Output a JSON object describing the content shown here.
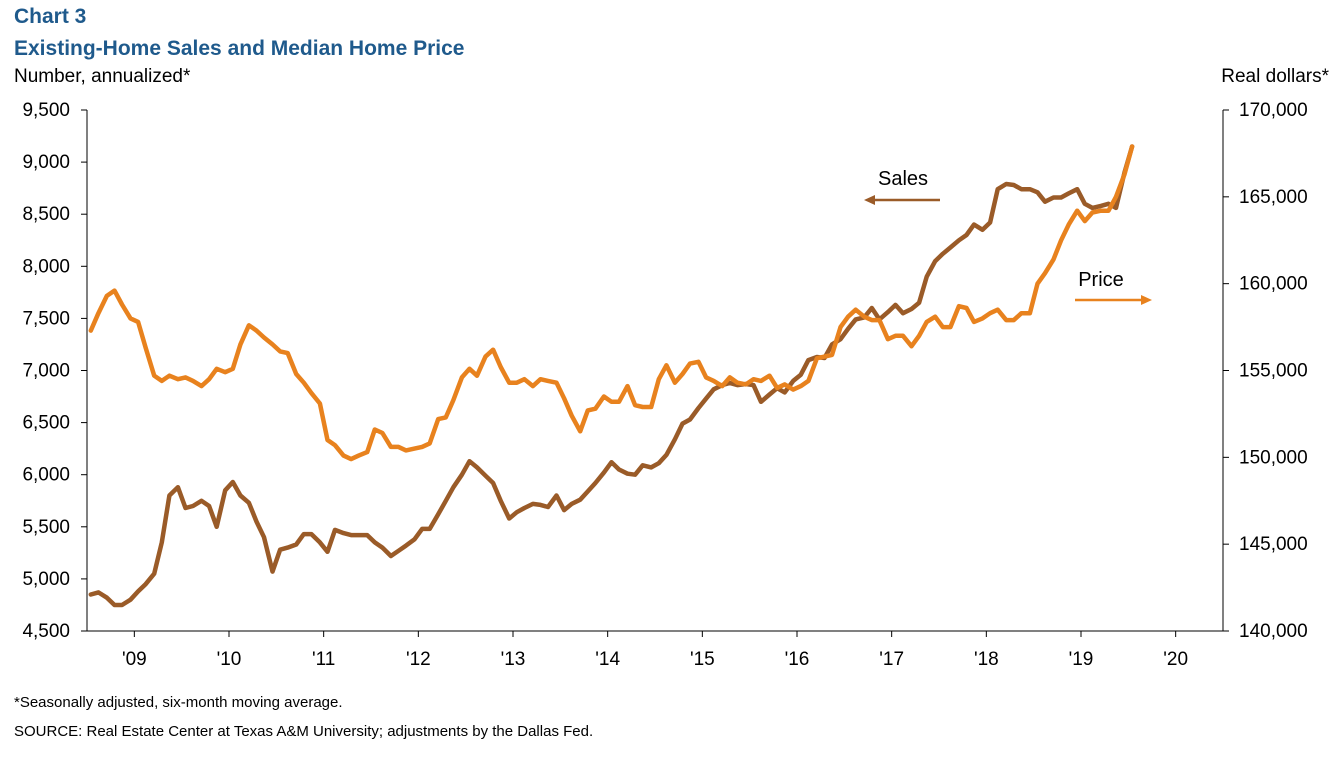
{
  "header": {
    "chart_number": "Chart 3",
    "title": "Existing-Home Sales and Median Home Price",
    "left_axis_label": "Number, annualized*",
    "right_axis_label": "Real dollars*"
  },
  "footer": {
    "note": "*Seasonally adjusted, six-month moving average.",
    "source": "SOURCE: Real Estate Center at Texas A&M University; adjustments by the Dallas Fed."
  },
  "colors": {
    "sales": "#9a5b28",
    "price": "#e8821e",
    "axis": "#000000"
  },
  "chart_data": {
    "type": "line",
    "title": "Existing-Home Sales and Median Home Price",
    "ylabel": "Number, annualized*",
    "y2label": "Real dollars*",
    "xlim": [
      2008.5,
      2020.5
    ],
    "ylim": [
      4500,
      9500
    ],
    "y2lim": [
      140000,
      170000
    ],
    "y_ticks": [
      "4,500",
      "5,000",
      "5,500",
      "6,000",
      "6,500",
      "7,000",
      "7,500",
      "8,000",
      "8,500",
      "9,000",
      "9,500"
    ],
    "y2_ticks": [
      "140,000",
      "145,000",
      "150,000",
      "155,000",
      "160,000",
      "165,000",
      "170,000"
    ],
    "x_ticks": [
      "'09",
      "'10",
      "'11",
      "'12",
      "'13",
      "'14",
      "'15",
      "'16",
      "'17",
      "'18",
      "'19",
      "'20"
    ],
    "grid": false,
    "annotations": {
      "sales": "Sales",
      "price": "Price"
    },
    "series": [
      {
        "name": "Sales",
        "axis": "left",
        "x": [
          2008.54,
          2008.62,
          2008.71,
          2008.79,
          2008.87,
          2008.96,
          2009.04,
          2009.12,
          2009.21,
          2009.29,
          2009.37,
          2009.46,
          2009.54,
          2009.62,
          2009.71,
          2009.79,
          2009.87,
          2009.96,
          2010.04,
          2010.12,
          2010.21,
          2010.29,
          2010.37,
          2010.46,
          2010.54,
          2010.62,
          2010.71,
          2010.79,
          2010.87,
          2010.96,
          2011.04,
          2011.12,
          2011.21,
          2011.29,
          2011.37,
          2011.46,
          2011.54,
          2011.62,
          2011.71,
          2011.79,
          2011.87,
          2011.96,
          2012.04,
          2012.12,
          2012.21,
          2012.29,
          2012.37,
          2012.46,
          2012.54,
          2012.62,
          2012.71,
          2012.79,
          2012.87,
          2012.96,
          2013.04,
          2013.12,
          2013.21,
          2013.29,
          2013.37,
          2013.46,
          2013.54,
          2013.62,
          2013.71,
          2013.79,
          2013.87,
          2013.96,
          2014.04,
          2014.12,
          2014.21,
          2014.29,
          2014.37,
          2014.46,
          2014.54,
          2014.62,
          2014.71,
          2014.79,
          2014.87,
          2014.96,
          2015.04,
          2015.12,
          2015.21,
          2015.29,
          2015.37,
          2015.46,
          2015.54,
          2015.62,
          2015.71,
          2015.79,
          2015.87,
          2015.96,
          2016.04,
          2016.12,
          2016.21,
          2016.29,
          2016.37,
          2016.46,
          2016.54,
          2016.62,
          2016.71,
          2016.79,
          2016.87,
          2016.96,
          2017.04,
          2017.12,
          2017.21,
          2017.29,
          2017.37,
          2017.46,
          2017.54,
          2017.62,
          2017.71,
          2017.79,
          2017.87,
          2017.96,
          2018.04,
          2018.12,
          2018.21,
          2018.29,
          2018.37,
          2018.46,
          2018.54,
          2018.62,
          2018.71,
          2018.79,
          2018.87,
          2018.96,
          2019.04,
          2019.12,
          2019.21,
          2019.29,
          2019.37,
          2019.46,
          2019.54
        ],
        "values": [
          4850,
          4870,
          4820,
          4750,
          4750,
          4800,
          4880,
          4950,
          5050,
          5350,
          5800,
          5880,
          5680,
          5700,
          5750,
          5700,
          5500,
          5850,
          5930,
          5800,
          5730,
          5550,
          5400,
          5070,
          5280,
          5300,
          5330,
          5430,
          5430,
          5350,
          5260,
          5470,
          5440,
          5420,
          5420,
          5420,
          5350,
          5300,
          5220,
          5270,
          5320,
          5380,
          5480,
          5480,
          5620,
          5750,
          5880,
          6000,
          6130,
          6070,
          5990,
          5920,
          5750,
          5580,
          5640,
          5680,
          5720,
          5710,
          5690,
          5800,
          5660,
          5720,
          5760,
          5840,
          5920,
          6020,
          6120,
          6050,
          6010,
          6000,
          6090,
          6070,
          6110,
          6190,
          6340,
          6490,
          6530,
          6640,
          6730,
          6820,
          6860,
          6880,
          6860,
          6870,
          6860,
          6700,
          6770,
          6830,
          6790,
          6900,
          6960,
          7100,
          7130,
          7120,
          7250,
          7300,
          7400,
          7490,
          7510,
          7600,
          7490,
          7560,
          7630,
          7550,
          7590,
          7650,
          7900,
          8050,
          8120,
          8180,
          8250,
          8300,
          8400,
          8350,
          8420,
          8740,
          8790,
          8780,
          8740,
          8740,
          8710,
          8620,
          8660,
          8660,
          8700,
          8740,
          8600,
          8560,
          8580,
          8600,
          8560,
          8900,
          9150
        ]
      },
      {
        "name": "Price",
        "axis": "right",
        "x": [
          2008.54,
          2008.62,
          2008.71,
          2008.79,
          2008.87,
          2008.96,
          2009.04,
          2009.12,
          2009.21,
          2009.29,
          2009.37,
          2009.46,
          2009.54,
          2009.62,
          2009.71,
          2009.79,
          2009.87,
          2009.96,
          2010.04,
          2010.12,
          2010.21,
          2010.29,
          2010.37,
          2010.46,
          2010.54,
          2010.62,
          2010.71,
          2010.79,
          2010.87,
          2010.96,
          2011.04,
          2011.12,
          2011.21,
          2011.29,
          2011.37,
          2011.46,
          2011.54,
          2011.62,
          2011.71,
          2011.79,
          2011.87,
          2011.96,
          2012.04,
          2012.12,
          2012.21,
          2012.29,
          2012.37,
          2012.46,
          2012.54,
          2012.62,
          2012.71,
          2012.79,
          2012.87,
          2012.96,
          2013.04,
          2013.12,
          2013.21,
          2013.29,
          2013.37,
          2013.46,
          2013.54,
          2013.62,
          2013.71,
          2013.79,
          2013.87,
          2013.96,
          2014.04,
          2014.12,
          2014.21,
          2014.29,
          2014.37,
          2014.46,
          2014.54,
          2014.62,
          2014.71,
          2014.79,
          2014.87,
          2014.96,
          2015.04,
          2015.12,
          2015.21,
          2015.29,
          2015.37,
          2015.46,
          2015.54,
          2015.62,
          2015.71,
          2015.79,
          2015.87,
          2015.96,
          2016.04,
          2016.12,
          2016.21,
          2016.29,
          2016.37,
          2016.46,
          2016.54,
          2016.62,
          2016.71,
          2016.79,
          2016.87,
          2016.96,
          2017.04,
          2017.12,
          2017.21,
          2017.29,
          2017.37,
          2017.46,
          2017.54,
          2017.62,
          2017.71,
          2017.79,
          2017.87,
          2017.96,
          2018.04,
          2018.12,
          2018.21,
          2018.29,
          2018.37,
          2018.46,
          2018.54,
          2018.62,
          2018.71,
          2018.79,
          2018.87,
          2018.96,
          2019.04,
          2019.12,
          2019.21,
          2019.29,
          2019.37,
          2019.46,
          2019.54
        ],
        "values": [
          157300,
          158300,
          159300,
          159600,
          158800,
          158000,
          157800,
          156300,
          154700,
          154400,
          154700,
          154500,
          154600,
          154400,
          154100,
          154500,
          155100,
          154900,
          155100,
          156500,
          157600,
          157300,
          156900,
          156500,
          156100,
          156000,
          154800,
          154300,
          153700,
          153100,
          151000,
          150700,
          150100,
          149900,
          150100,
          150300,
          151600,
          151400,
          150600,
          150600,
          150400,
          150500,
          150600,
          150800,
          152200,
          152300,
          153300,
          154600,
          155100,
          154700,
          155800,
          156200,
          155200,
          154300,
          154300,
          154500,
          154100,
          154500,
          154400,
          154300,
          153400,
          152400,
          151500,
          152700,
          152800,
          153500,
          153200,
          153200,
          154100,
          153000,
          152900,
          152900,
          154500,
          155300,
          154300,
          154800,
          155400,
          155500,
          154600,
          154400,
          154100,
          154600,
          154300,
          154200,
          154500,
          154400,
          154700,
          154000,
          154200,
          153900,
          154100,
          154400,
          155700,
          155800,
          155900,
          157500,
          158100,
          158500,
          158100,
          157900,
          157900,
          156800,
          157000,
          157000,
          156400,
          157000,
          157800,
          158100,
          157500,
          157500,
          158700,
          158600,
          157800,
          158000,
          158300,
          158500,
          157900,
          157900,
          158300,
          158300,
          160000,
          160600,
          161400,
          162500,
          163400,
          164200,
          163600,
          164100,
          164200,
          164200,
          165000,
          166300,
          167900
        ]
      }
    ]
  }
}
